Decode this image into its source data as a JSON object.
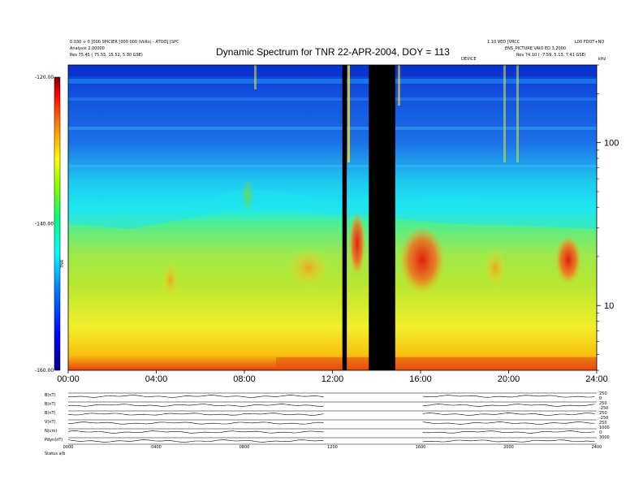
{
  "header": {
    "top_left_1": "0.030 + 0 [000 SPICIER [000 000 (Volts) - ATOO] [SPC",
    "top_left_2": "Analysis 2.00000",
    "top_left_3": "Res   75.45 ( 75.55, 15.52, 5.30 GSE)",
    "top_right_1a": "1.10 VED [VRCC",
    "top_right_1b": "L00 FDOT+NO",
    "top_right_2": "ENS_PICTURE VAIO ED 3,2000",
    "top_right_3": "Rev   74.10 ( -7.59, 5.13, 7.41 GSE)",
    "center_small": "DEVICE",
    "corner_small": "kHz"
  },
  "chart_data": {
    "type": "heatmap",
    "title": "Dynamic Spectrum for TNR 22-APR-2004, DOY = 113",
    "x_ticks": [
      "00:00",
      "04:00",
      "08:00",
      "12:00",
      "16:00",
      "20:00",
      "24:00"
    ],
    "x_range_hours": [
      0,
      24
    ],
    "y_right_ticks": [
      "100",
      "10"
    ],
    "y_right_scale": "log",
    "y_right_range": [
      4,
      300
    ],
    "colorbar": {
      "labels": [
        "-120.00",
        "-140.00",
        "-160.00"
      ],
      "range": [
        -160,
        -120
      ],
      "label": "TNR",
      "colors": [
        "#000080",
        "#0000ff",
        "#0080ff",
        "#00ffff",
        "#00ff80",
        "#80ff00",
        "#ffff00",
        "#ff8000",
        "#ff0000",
        "#800000"
      ]
    },
    "data_gaps_hours": [
      [
        12.45,
        12.65
      ],
      [
        13.65,
        14.85
      ]
    ]
  },
  "panels": {
    "labels": [
      "B(nT)",
      "B(nT)",
      "B(nT)",
      "V(nT)",
      "N(cm)",
      "Pdyn(nT)"
    ],
    "right_labels": [
      "250",
      "0",
      "250",
      "-250",
      "250",
      "-250",
      "250",
      "1000",
      "0",
      "3000"
    ],
    "bottom_ticks": [
      "0000",
      "0400",
      "0800",
      "1200",
      "1600",
      "2000",
      "2400"
    ],
    "footer": "Status      a/b"
  }
}
